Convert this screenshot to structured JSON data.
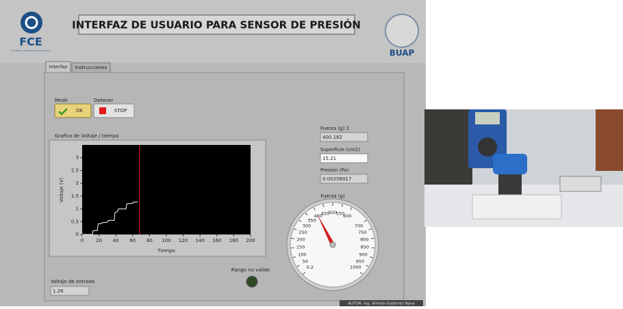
{
  "header": {
    "title": "INTERFAZ DE USUARIO PARA SENSOR DE PRESIÓN",
    "logo_left": "FCE",
    "logo_left_sub": "Facultad de Ciencias de la Electrónica",
    "logo_right": "BUAP"
  },
  "tabs": [
    "Interfaz",
    "Instrucciones"
  ],
  "controls": {
    "measure_label": "Medir",
    "measure_button": "OK",
    "stop_label": "Detener",
    "stop_button": "STOP"
  },
  "graph": {
    "type": "line",
    "title": "Grafica  de Voltaje / tiempo",
    "x_label": "Tiempo",
    "y_label": "Voltaje (V)",
    "color": "#ffffff",
    "x": [
      0,
      12,
      13,
      18,
      19,
      22,
      23,
      30,
      31,
      38,
      39,
      42,
      43,
      52,
      53,
      60,
      61,
      66
    ],
    "values": [
      0,
      0,
      0.15,
      0.15,
      0.42,
      0.42,
      0.45,
      0.48,
      0.55,
      0.55,
      0.85,
      0.9,
      1.0,
      1.0,
      1.2,
      1.22,
      1.27,
      1.27
    ],
    "cursor_x": 68,
    "xlim": [
      0,
      200
    ],
    "ylim": [
      0,
      3.5
    ],
    "xticks": [
      0,
      20,
      40,
      60,
      80,
      100,
      120,
      140,
      160,
      180,
      200
    ],
    "yticks": [
      0,
      0.5,
      1,
      1.5,
      2,
      2.5,
      3
    ]
  },
  "indicators": [
    {
      "label": "Fuerza (g) 2",
      "value": "400.182"
    },
    {
      "label": "Superficie (cm2)",
      "value": "15.21"
    },
    {
      "label": "Presión (Pa)",
      "value": "0.00258017"
    }
  ],
  "gauge": {
    "label": "Fuerza (g)",
    "value": 400.182,
    "min": 0,
    "max": 1000,
    "ticks": [
      0.2,
      50,
      100,
      150,
      200,
      250,
      300,
      350,
      400,
      450,
      500,
      550,
      600,
      700,
      750,
      800,
      850,
      900,
      950,
      1000
    ]
  },
  "led": {
    "label": "Rango no valido"
  },
  "input_voltage": {
    "label": "Voltaje de entrada",
    "value": "1.26"
  },
  "footer": "AUTOR: Ing. Alfredo Gutierrez Nava"
}
